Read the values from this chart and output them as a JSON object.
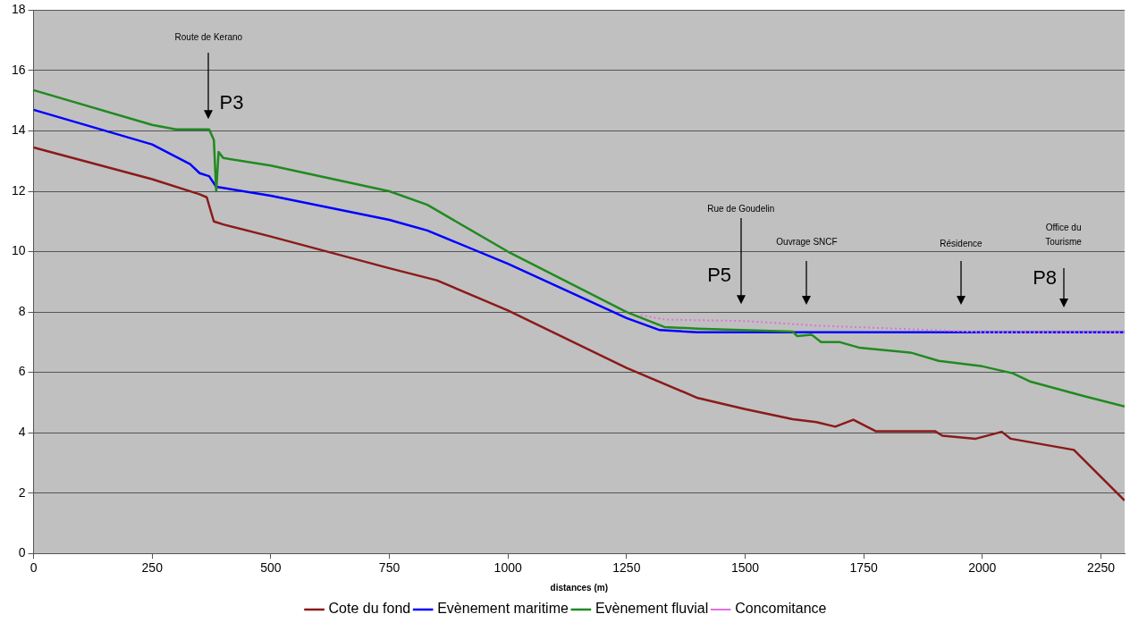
{
  "chart_data": {
    "type": "line",
    "xlabel": "distances (m)",
    "xlim": [
      0,
      2300
    ],
    "xticks": [
      0,
      250,
      500,
      750,
      1000,
      1250,
      1500,
      1750,
      2000,
      2250
    ],
    "ylim": [
      0,
      18
    ],
    "yticks": [
      0,
      2,
      4,
      6,
      8,
      10,
      12,
      14,
      16,
      18
    ],
    "grid": "y",
    "legend": "bottom",
    "marker": "none",
    "series": [
      {
        "name": "Cote du fond",
        "color": "#8b1a1a",
        "x": [
          0,
          250,
          350,
          365,
          380,
          400,
          500,
          750,
          850,
          1000,
          1250,
          1400,
          1500,
          1600,
          1650,
          1690,
          1728,
          1775,
          1900,
          1916,
          1986,
          2041,
          2060,
          2193,
          2300
        ],
        "values": [
          13.45,
          12.4,
          11.9,
          11.8,
          11.0,
          10.9,
          10.5,
          9.45,
          9.05,
          8.05,
          6.15,
          5.15,
          4.78,
          4.45,
          4.35,
          4.2,
          4.43,
          4.05,
          4.05,
          3.9,
          3.8,
          4.03,
          3.8,
          3.43,
          1.75
        ]
      },
      {
        "name": "Evènement maritime",
        "color": "#0000ff",
        "x": [
          0,
          250,
          330,
          350,
          370,
          385,
          500,
          750,
          830,
          1000,
          1250,
          1320,
          1400,
          2300
        ],
        "values": [
          14.7,
          13.55,
          12.9,
          12.6,
          12.5,
          12.15,
          11.85,
          11.05,
          10.7,
          9.6,
          7.8,
          7.4,
          7.33,
          7.33
        ]
      },
      {
        "name": "Evènement fluvial",
        "color": "#208a20",
        "x": [
          0,
          250,
          300,
          370,
          380,
          385,
          390,
          400,
          500,
          750,
          830,
          1000,
          1250,
          1330,
          1400,
          1600,
          1610,
          1640,
          1660,
          1700,
          1740,
          1850,
          1908,
          2000,
          2064,
          2100,
          2213,
          2300
        ],
        "values": [
          15.35,
          14.2,
          14.05,
          14.05,
          13.7,
          12.0,
          13.3,
          13.1,
          12.85,
          12.0,
          11.55,
          10.0,
          8.0,
          7.5,
          7.45,
          7.35,
          7.2,
          7.25,
          7.0,
          7.0,
          6.82,
          6.65,
          6.38,
          6.2,
          5.97,
          5.7,
          5.22,
          4.87
        ]
      },
      {
        "name": "Concomitance",
        "color": "#e070e0",
        "line_style": "dotted",
        "x": [
          1280,
          1330,
          1500,
          1650,
          1900,
          2000,
          2300
        ],
        "values": [
          7.9,
          7.75,
          7.7,
          7.55,
          7.4,
          7.33,
          7.33
        ]
      }
    ],
    "annotations": [
      "Route de Kerano",
      "P3",
      "Rue de Goudelin",
      "P5",
      "Ouvrage SNCF",
      "Résidence",
      "Office du Tourisme",
      "P8"
    ]
  }
}
